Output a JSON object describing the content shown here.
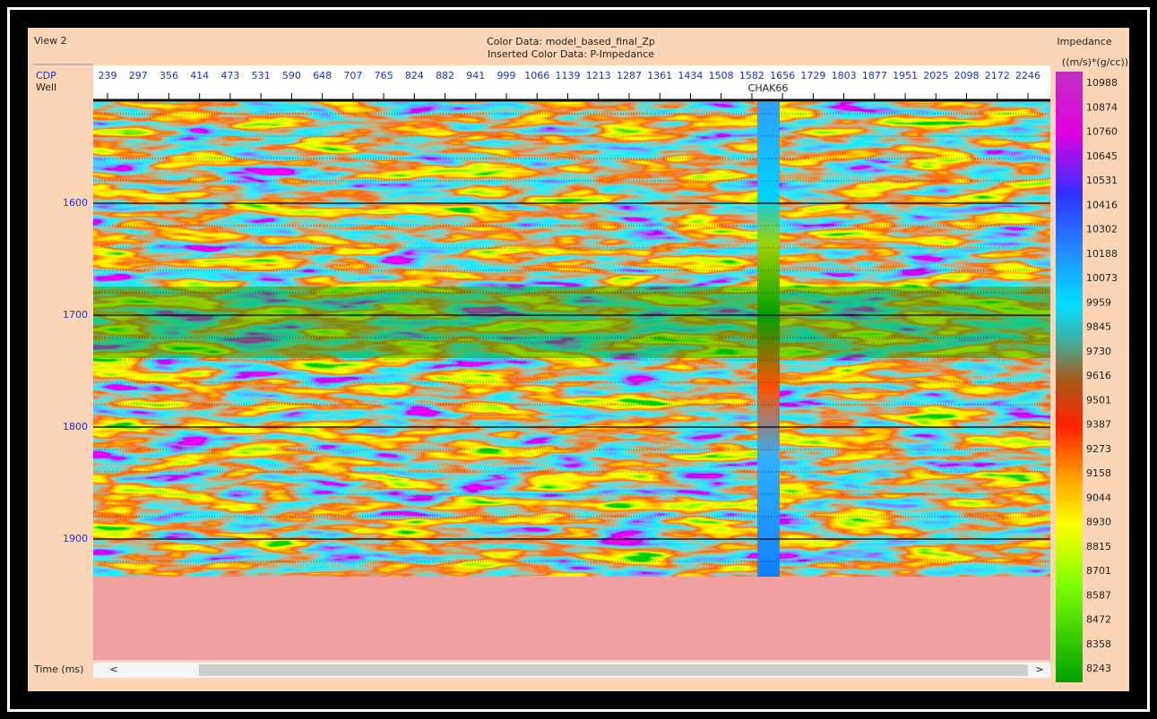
{
  "view": {
    "title": "View 2"
  },
  "header": {
    "color_data": "Color Data: model_based_final_Zp",
    "inserted_color_data": "Inserted Color Data: P-Impedance"
  },
  "axis": {
    "cdp_label": "CDP",
    "well_label": "Well",
    "time_label": "Time (ms)",
    "cdp_ticks": [
      "239",
      "297",
      "356",
      "414",
      "473",
      "531",
      "590",
      "648",
      "707",
      "765",
      "824",
      "882",
      "941",
      "999",
      "1066",
      "1139",
      "1213",
      "1287",
      "1361",
      "1434",
      "1508",
      "1582",
      "1656",
      "1729",
      "1803",
      "1877",
      "1951",
      "2025",
      "2098",
      "2172",
      "2246"
    ],
    "time_ticks": [
      "1600",
      "1700",
      "1800",
      "1900"
    ]
  },
  "well": {
    "name": "CHAK66"
  },
  "colorbar": {
    "title": "Impedance",
    "unit": "((m/s)*(g/cc))",
    "labels": [
      "10988",
      "10874",
      "10760",
      "10645",
      "10531",
      "10416",
      "10302",
      "10188",
      "10073",
      "9959",
      "9845",
      "9730",
      "9616",
      "9501",
      "9387",
      "9273",
      "9158",
      "9044",
      "8930",
      "8815",
      "8701",
      "8587",
      "8472",
      "8358",
      "8243"
    ]
  },
  "scrollbar": {
    "left": "<",
    "right": ">"
  }
}
